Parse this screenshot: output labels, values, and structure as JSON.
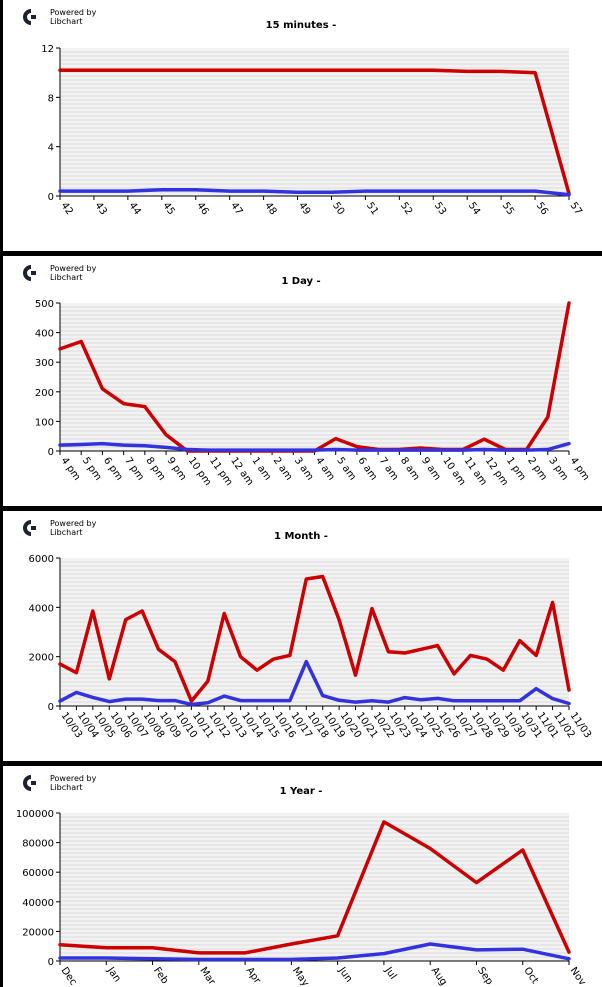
{
  "branding": {
    "powered_by": "Powered by",
    "library": "Libchart"
  },
  "colors": {
    "series_red": "#cc0000",
    "series_blue": "#3333dd",
    "frame": "#000000",
    "plot_bg": "#f2f2f2",
    "grid": "#dcdcdc"
  },
  "chart_data": [
    {
      "type": "line",
      "title": "15 minutes -",
      "categories": [
        "42",
        "43",
        "44",
        "45",
        "46",
        "47",
        "48",
        "49",
        "50",
        "51",
        "52",
        "53",
        "54",
        "55",
        "56",
        "57"
      ],
      "ylim": [
        0,
        12
      ],
      "yticks": [
        "0",
        "4",
        "8",
        "12"
      ],
      "ytick_values": [
        0,
        4,
        8,
        12
      ],
      "series": [
        {
          "name": "red",
          "values": [
            10.2,
            10.2,
            10.2,
            10.2,
            10.2,
            10.2,
            10.2,
            10.2,
            10.2,
            10.2,
            10.2,
            10.2,
            10.1,
            10.1,
            10.0,
            0.2
          ]
        },
        {
          "name": "blue",
          "values": [
            0.4,
            0.4,
            0.4,
            0.5,
            0.5,
            0.4,
            0.4,
            0.3,
            0.3,
            0.4,
            0.4,
            0.4,
            0.4,
            0.4,
            0.4,
            0.1
          ]
        }
      ]
    },
    {
      "type": "line",
      "title": "1 Day -",
      "categories": [
        "4 pm",
        "5 pm",
        "6 pm",
        "7 pm",
        "8 pm",
        "9 pm",
        "10 pm",
        "11 pm",
        "12 am",
        "1 am",
        "2 am",
        "3 am",
        "4 am",
        "5 am",
        "6 am",
        "7 am",
        "8 am",
        "9 am",
        "10 am",
        "11 am",
        "12 pm",
        "1 pm",
        "2 pm",
        "3 pm",
        "4 pm"
      ],
      "ylim": [
        0,
        500
      ],
      "yticks": [
        "0",
        "100",
        "200",
        "300",
        "400",
        "500"
      ],
      "ytick_values": [
        0,
        100,
        200,
        300,
        400,
        500
      ],
      "series": [
        {
          "name": "red",
          "values": [
            345,
            370,
            210,
            160,
            150,
            55,
            0,
            0,
            0,
            0,
            0,
            0,
            0,
            42,
            15,
            5,
            5,
            10,
            5,
            5,
            40,
            5,
            5,
            115,
            500
          ]
        },
        {
          "name": "blue",
          "values": [
            20,
            22,
            25,
            20,
            18,
            12,
            5,
            3,
            3,
            3,
            3,
            3,
            3,
            5,
            3,
            3,
            3,
            3,
            3,
            3,
            5,
            3,
            3,
            5,
            25
          ]
        }
      ]
    },
    {
      "type": "line",
      "title": "1 Month -",
      "categories": [
        "10/03",
        "10/04",
        "10/05",
        "10/06",
        "10/07",
        "10/08",
        "10/09",
        "10/10",
        "10/11",
        "10/12",
        "10/13",
        "10/14",
        "10/15",
        "10/16",
        "10/17",
        "10/18",
        "10/19",
        "10/20",
        "10/21",
        "10/22",
        "10/23",
        "10/24",
        "10/25",
        "10/26",
        "10/27",
        "10/28",
        "10/29",
        "10/30",
        "10/31",
        "11/01",
        "11/02",
        "11/03"
      ],
      "ylim": [
        0,
        6000
      ],
      "yticks": [
        "0",
        "2000",
        "4000",
        "6000"
      ],
      "ytick_values": [
        0,
        2000,
        4000,
        6000
      ],
      "series": [
        {
          "name": "red",
          "values": [
            1700,
            1350,
            3850,
            1100,
            3500,
            3850,
            2300,
            1800,
            200,
            1000,
            3750,
            2000,
            1450,
            1900,
            2050,
            5150,
            5250,
            3500,
            1250,
            3950,
            2200,
            2150,
            2300,
            2450,
            1300,
            2050,
            1900,
            1450,
            2650,
            2050,
            4200,
            650
          ]
        },
        {
          "name": "blue",
          "values": [
            200,
            550,
            350,
            180,
            280,
            280,
            220,
            220,
            60,
            130,
            400,
            220,
            220,
            220,
            220,
            1800,
            420,
            230,
            160,
            210,
            160,
            340,
            250,
            310,
            210,
            210,
            210,
            210,
            210,
            700,
            300,
            100
          ]
        }
      ]
    },
    {
      "type": "line",
      "title": "1 Year -",
      "categories": [
        "Dec",
        "Jan",
        "Feb",
        "Mar",
        "Apr",
        "May",
        "Jun",
        "Jul",
        "Aug",
        "Sep",
        "Oct",
        "Nov"
      ],
      "ylim": [
        0,
        100000
      ],
      "yticks": [
        "0",
        "20000",
        "40000",
        "60000",
        "80000",
        "100000"
      ],
      "ytick_values": [
        0,
        20000,
        40000,
        60000,
        80000,
        100000
      ],
      "series": [
        {
          "name": "red",
          "values": [
            11000,
            9000,
            9000,
            5500,
            5500,
            11500,
            17000,
            94000,
            76000,
            53000,
            75000,
            6000
          ]
        },
        {
          "name": "blue",
          "values": [
            2000,
            2000,
            1500,
            1000,
            1000,
            1000,
            2000,
            5000,
            11500,
            7500,
            8000,
            1500
          ]
        }
      ]
    }
  ]
}
